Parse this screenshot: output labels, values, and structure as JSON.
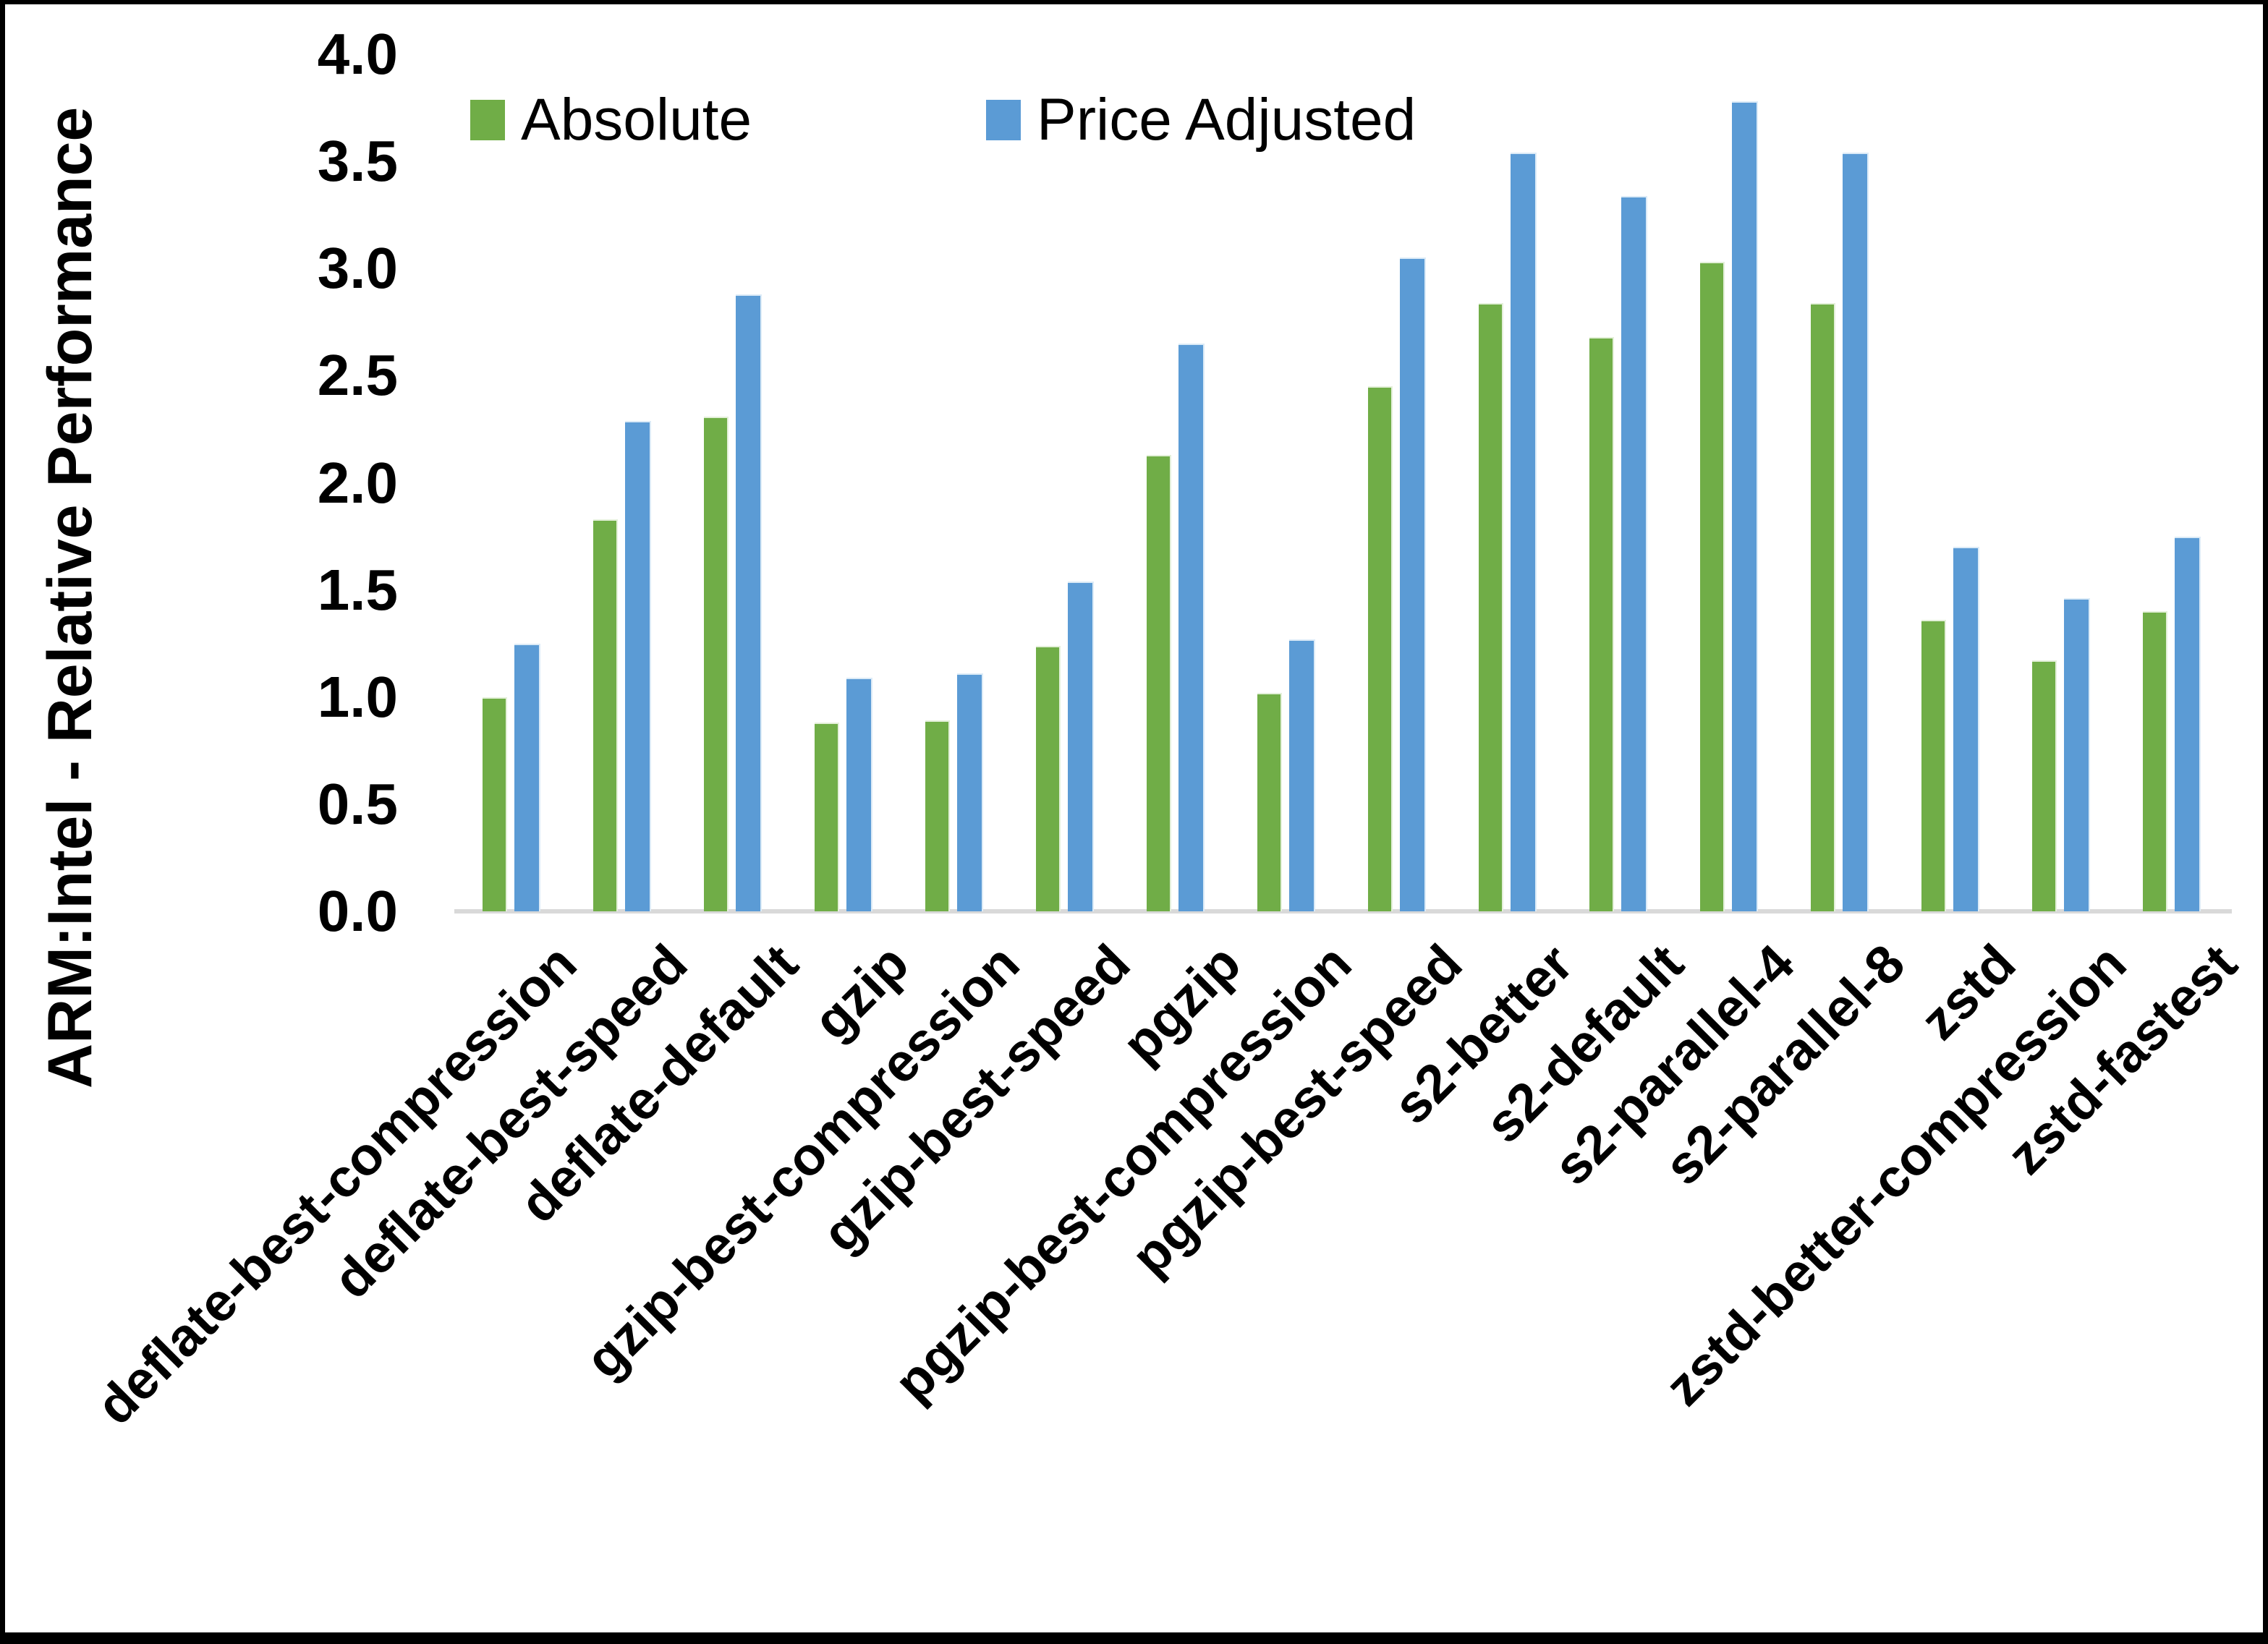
{
  "page": {
    "background": "#ffffff",
    "frame_color": "#000000"
  },
  "y_axis": {
    "title": "ARM:Intel - Relative Performance",
    "tick_labels": [
      "0.0",
      "0.5",
      "1.0",
      "1.5",
      "2.0",
      "2.5",
      "3.0",
      "3.5",
      "4.0"
    ]
  },
  "legend": {
    "items": [
      {
        "label": "Absolute",
        "color": "#70AD47"
      },
      {
        "label": "Price Adjusted",
        "color": "#5B9BD5"
      }
    ]
  },
  "chart_data": {
    "type": "bar",
    "title": "",
    "xlabel": "",
    "ylabel": "ARM:Intel - Relative Performance",
    "ylim": [
      0.0,
      4.0
    ],
    "ytick_step": 0.5,
    "grid": false,
    "legend_position": "top-left-of-plot",
    "categories": [
      "deflate-best-compression",
      "deflate-best-speed",
      "deflate-default",
      "gzip",
      "gzip-best-compression",
      "gzip-best-speed",
      "pgzip",
      "pgzip-best-compression",
      "pgzip-best-speed",
      "s2-better",
      "s2-default",
      "s2-parallel-4",
      "s2-parallel-8",
      "zstd",
      "zstd-better-compression",
      "zstd-fastest"
    ],
    "series": [
      {
        "name": "Absolute",
        "color": "#70AD47",
        "values": [
          1.0,
          1.83,
          2.31,
          0.88,
          0.89,
          1.24,
          2.13,
          1.02,
          2.45,
          2.84,
          2.68,
          3.03,
          2.84,
          1.36,
          1.17,
          1.4
        ]
      },
      {
        "name": "Price Adjusted",
        "color": "#5B9BD5",
        "values": [
          1.25,
          2.29,
          2.88,
          1.09,
          1.11,
          1.54,
          2.65,
          1.27,
          3.05,
          3.54,
          3.34,
          3.78,
          3.54,
          1.7,
          1.46,
          1.75
        ]
      }
    ]
  }
}
